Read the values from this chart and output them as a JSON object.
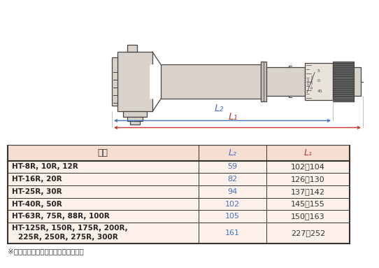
{
  "bg_color": "#ffffff",
  "table_header_bg": "#f5ddd0",
  "table_row_bg": "#fdf0e8",
  "table_border_color": "#333333",
  "header_text_color": "#333333",
  "l2_color": "#4472c4",
  "l1_color": "#c0392b",
  "col_header": [
    "符号",
    "L₂",
    "L₁"
  ],
  "rows": [
    [
      "HT-8R, 10R, 12R",
      "59",
      "102～104"
    ],
    [
      "HT-16R, 20R",
      "82",
      "126～130"
    ],
    [
      "HT-25R, 30R",
      "94",
      "137～142"
    ],
    [
      "HT-40R, 50R",
      "102",
      "145～155"
    ],
    [
      "HT-63R, 75R, 88R, 100R",
      "105",
      "150～163"
    ],
    [
      "HT-125R, 150R, 175R, 200R,\n225R, 250R, 275R, 300R",
      "161",
      "227～252"
    ]
  ],
  "footnote": "※測定範囲により外観が異なります。",
  "body_color": "#d8d2ca",
  "dark_color": "#444444",
  "knurl_color": "#555555",
  "scale_bg": "#e8e2da"
}
